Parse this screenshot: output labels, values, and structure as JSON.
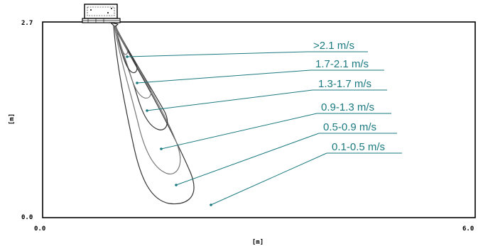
{
  "axes": {
    "y_label": "[m]",
    "x_label": "[m]",
    "y_top": "2.7",
    "y_bottom": "0.0",
    "x_left": "0.0",
    "x_right": "6.0"
  },
  "zones": [
    {
      "label": ">2.1 m/s",
      "color": "#1a7a80"
    },
    {
      "label": "1.7-2.1 m/s",
      "color": "#1a7a80"
    },
    {
      "label": "1.3-1.7 m/s",
      "color": "#1a7a80"
    },
    {
      "label": "0.9-1.3 m/s",
      "color": "#1a7a80"
    },
    {
      "label": "0.5-0.9 m/s",
      "color": "#1a7a80"
    },
    {
      "label": "0.1-0.5 m/s",
      "color": "#1a7a80"
    }
  ],
  "colors": {
    "contour_dark": "#333333",
    "contour_mid": "#777777",
    "frame": "#000000"
  }
}
